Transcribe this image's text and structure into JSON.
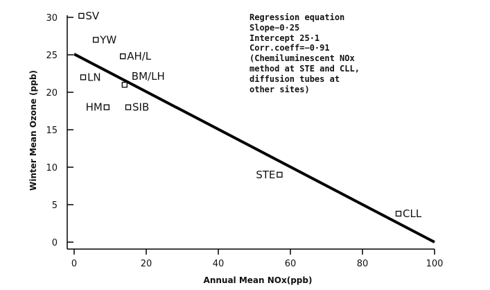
{
  "chart_data": {
    "type": "scatter",
    "xlabel": "Annual Mean NOx(ppb)",
    "ylabel": "Winter Mean Ozone (ppb)",
    "xlim": [
      0,
      100
    ],
    "ylim": [
      0,
      30
    ],
    "xticks": [
      0,
      20,
      40,
      60,
      80,
      100
    ],
    "yticks": [
      0,
      5,
      10,
      15,
      20,
      25,
      30
    ],
    "grid": false,
    "points": [
      {
        "label": "SV",
        "x": 2,
        "y": 30.2
      },
      {
        "label": "YW",
        "x": 6,
        "y": 27
      },
      {
        "label": "AH/L",
        "x": 13.5,
        "y": 24.8
      },
      {
        "label": "LN",
        "x": 2.5,
        "y": 22
      },
      {
        "label": "BM/LH",
        "x": 14,
        "y": 21
      },
      {
        "label": "HM",
        "x": 9,
        "y": 18
      },
      {
        "label": "SIB",
        "x": 15,
        "y": 18
      },
      {
        "label": "STE",
        "x": 57,
        "y": 9
      },
      {
        "label": "CLL",
        "x": 90,
        "y": 3.8
      }
    ],
    "regression": {
      "x": [
        0,
        100
      ],
      "y": [
        25.1,
        0
      ]
    }
  },
  "annotation": {
    "lines": [
      "Regression equation",
      "Slope−0·25",
      "Intercept 25·1",
      "Corr.coeff=−0·91",
      "(Chemiluminescent NOx",
      "method at STE and CLL,",
      "diffusion tubes at",
      "other sites)"
    ]
  }
}
